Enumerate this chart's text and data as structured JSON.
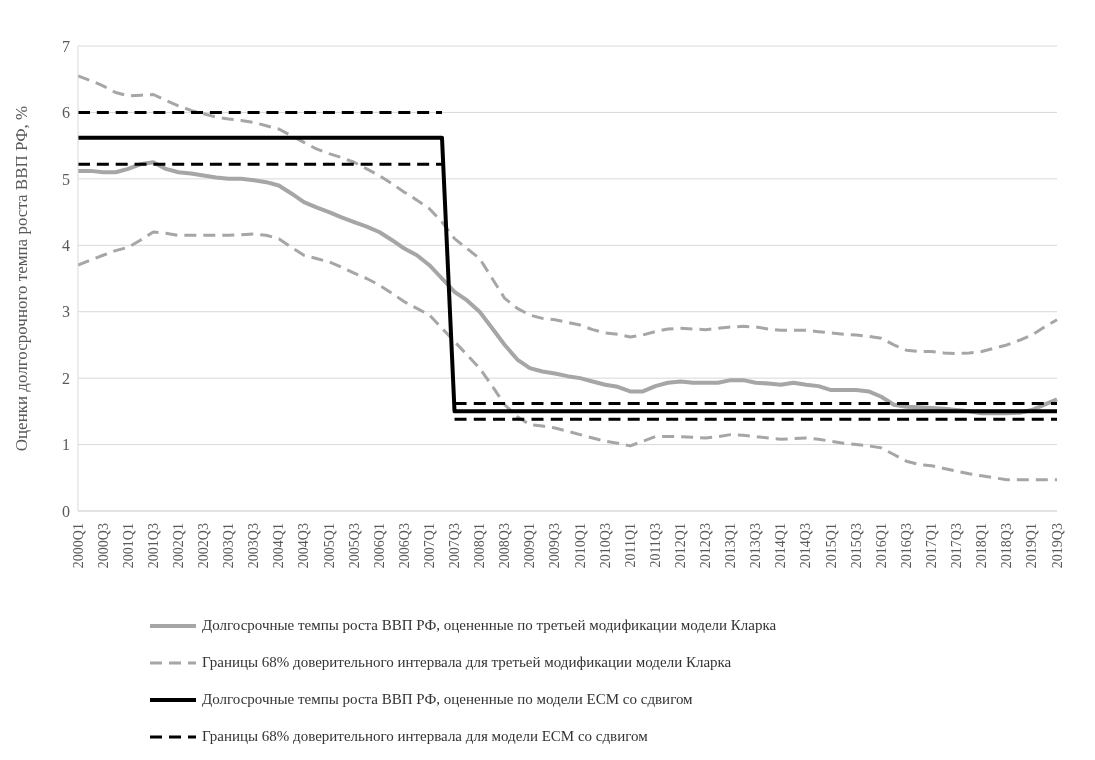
{
  "chart_data": {
    "type": "line",
    "ylabel": "Оценки долгосрочного темпа роста ВВП РФ, %",
    "categories": [
      "2000Q1",
      null,
      "2000Q3",
      null,
      "2001Q1",
      null,
      "2001Q3",
      null,
      "2002Q1",
      null,
      "2002Q3",
      null,
      "2003Q1",
      null,
      "2003Q3",
      null,
      "2004Q1",
      null,
      "2004Q3",
      null,
      "2005Q1",
      null,
      "2005Q3",
      null,
      "2006Q1",
      null,
      "2006Q3",
      null,
      "2007Q1",
      null,
      "2007Q3",
      null,
      "2008Q1",
      null,
      "2008Q3",
      null,
      "2009Q1",
      null,
      "2009Q3",
      null,
      "2010Q1",
      null,
      "2010Q3",
      null,
      "2011Q1",
      null,
      "2011Q3",
      null,
      "2012Q1",
      null,
      "2012Q3",
      null,
      "2013Q1",
      null,
      "2013Q3",
      null,
      "2014Q1",
      null,
      "2014Q3",
      null,
      "2015Q1",
      null,
      "2015Q3",
      null,
      "2016Q1",
      null,
      "2016Q3",
      null,
      "2017Q1",
      null,
      "2017Q3",
      null,
      "2018Q1",
      null,
      "2018Q3",
      null,
      "2019Q1",
      null,
      "2019Q3"
    ],
    "ylim": [
      0,
      7
    ],
    "yticks": [
      0,
      1,
      2,
      3,
      4,
      5,
      6,
      7
    ],
    "grid": "y",
    "legend": "bottom",
    "series": [
      {
        "name": "Долгосрочные темпы роста ВВП РФ, оцененные по третьей модификации модели Кларка",
        "color": "#a6a6a6",
        "line_style": "solid",
        "values": [
          5.12,
          5.12,
          5.1,
          5.1,
          5.15,
          5.22,
          5.25,
          5.15,
          5.1,
          5.08,
          5.05,
          5.02,
          5.0,
          5.0,
          4.98,
          4.95,
          4.9,
          4.78,
          4.65,
          4.57,
          4.5,
          4.42,
          4.35,
          4.28,
          4.2,
          4.08,
          3.95,
          3.85,
          3.7,
          3.5,
          3.3,
          3.17,
          3.0,
          2.75,
          2.5,
          2.28,
          2.15,
          2.1,
          2.07,
          2.03,
          2.0,
          1.95,
          1.9,
          1.87,
          1.8,
          1.8,
          1.88,
          1.93,
          1.95,
          1.93,
          1.93,
          1.93,
          1.97,
          1.97,
          1.93,
          1.92,
          1.9,
          1.93,
          1.9,
          1.88,
          1.82,
          1.82,
          1.82,
          1.8,
          1.72,
          1.6,
          1.57,
          1.56,
          1.55,
          1.54,
          1.52,
          1.5,
          1.47,
          1.47,
          1.47,
          1.48,
          1.52,
          1.6,
          1.68
        ]
      },
      {
        "name": "Границы 68% доверительного интервала для третьей модификации модели Кларка",
        "color": "#a6a6a6",
        "line_style": "dashed",
        "values": [
          6.55,
          6.48,
          6.4,
          6.3,
          6.25,
          6.26,
          6.27,
          6.18,
          6.1,
          6.03,
          5.98,
          5.93,
          5.9,
          5.88,
          5.85,
          5.8,
          5.75,
          5.65,
          5.55,
          5.45,
          5.38,
          5.32,
          5.25,
          5.15,
          5.05,
          4.93,
          4.8,
          4.68,
          4.55,
          4.35,
          4.1,
          3.95,
          3.8,
          3.5,
          3.2,
          3.05,
          2.95,
          2.9,
          2.88,
          2.84,
          2.8,
          2.73,
          2.68,
          2.66,
          2.62,
          2.65,
          2.7,
          2.74,
          2.75,
          2.74,
          2.73,
          2.75,
          2.77,
          2.78,
          2.77,
          2.74,
          2.72,
          2.72,
          2.72,
          2.7,
          2.68,
          2.66,
          2.65,
          2.63,
          2.6,
          2.5,
          2.42,
          2.4,
          2.4,
          2.38,
          2.37,
          2.38,
          2.4,
          2.45,
          2.5,
          2.57,
          2.65,
          2.77,
          2.88
        ]
      },
      {
        "color": "#a6a6a6",
        "line_style": "dashed",
        "values": [
          3.7,
          3.78,
          3.85,
          3.92,
          3.97,
          4.08,
          4.2,
          4.18,
          4.15,
          4.15,
          4.15,
          4.15,
          4.15,
          4.16,
          4.17,
          4.15,
          4.1,
          3.97,
          3.85,
          3.8,
          3.75,
          3.67,
          3.58,
          3.5,
          3.4,
          3.28,
          3.15,
          3.05,
          2.95,
          2.75,
          2.55,
          2.35,
          2.15,
          1.88,
          1.6,
          1.42,
          1.3,
          1.28,
          1.25,
          1.2,
          1.15,
          1.1,
          1.05,
          1.02,
          0.98,
          1.05,
          1.12,
          1.12,
          1.12,
          1.11,
          1.1,
          1.12,
          1.15,
          1.14,
          1.12,
          1.1,
          1.08,
          1.09,
          1.1,
          1.08,
          1.05,
          1.02,
          1.0,
          0.98,
          0.95,
          0.85,
          0.75,
          0.7,
          0.68,
          0.64,
          0.6,
          0.56,
          0.53,
          0.5,
          0.47,
          0.47,
          0.47,
          0.47,
          0.47
        ]
      },
      {
        "name": "Долгосрочные темпы роста ВВП РФ, оцененные по модели ECM со сдвигом",
        "color": "#000000",
        "line_style": "solid",
        "values": [
          5.62,
          5.62,
          5.62,
          5.62,
          5.62,
          5.62,
          5.62,
          5.62,
          5.62,
          5.62,
          5.62,
          5.62,
          5.62,
          5.62,
          5.62,
          5.62,
          5.62,
          5.62,
          5.62,
          5.62,
          5.62,
          5.62,
          5.62,
          5.62,
          5.62,
          5.62,
          5.62,
          5.62,
          5.62,
          5.62,
          1.5,
          1.5,
          1.5,
          1.5,
          1.5,
          1.5,
          1.5,
          1.5,
          1.5,
          1.5,
          1.5,
          1.5,
          1.5,
          1.5,
          1.5,
          1.5,
          1.5,
          1.5,
          1.5,
          1.5,
          1.5,
          1.5,
          1.5,
          1.5,
          1.5,
          1.5,
          1.5,
          1.5,
          1.5,
          1.5,
          1.5,
          1.5,
          1.5,
          1.5,
          1.5,
          1.5,
          1.5,
          1.5,
          1.5,
          1.5,
          1.5,
          1.5,
          1.5,
          1.5,
          1.5,
          1.5,
          1.5,
          1.5,
          1.5
        ]
      },
      {
        "name": "Границы 68% доверительного интервала для модели ECM со сдвигом",
        "color": "#000000",
        "line_style": "dashed",
        "values": [
          6.0,
          6.0,
          6.0,
          6.0,
          6.0,
          6.0,
          6.0,
          6.0,
          6.0,
          6.0,
          6.0,
          6.0,
          6.0,
          6.0,
          6.0,
          6.0,
          6.0,
          6.0,
          6.0,
          6.0,
          6.0,
          6.0,
          6.0,
          6.0,
          6.0,
          6.0,
          6.0,
          6.0,
          6.0,
          6.0,
          null,
          null,
          null,
          null,
          null,
          null,
          null,
          null,
          null,
          null,
          null,
          null,
          null,
          null,
          null,
          null,
          null,
          null,
          null,
          null,
          null,
          null,
          null,
          null,
          null,
          null,
          null,
          null,
          null,
          null,
          null,
          null,
          null,
          null,
          null,
          null,
          null,
          null,
          null,
          null,
          null,
          null,
          null,
          null,
          null,
          null,
          null,
          null,
          null
        ]
      },
      {
        "color": "#000000",
        "line_style": "dashed",
        "values": [
          5.22,
          5.22,
          5.22,
          5.22,
          5.22,
          5.22,
          5.22,
          5.22,
          5.22,
          5.22,
          5.22,
          5.22,
          5.22,
          5.22,
          5.22,
          5.22,
          5.22,
          5.22,
          5.22,
          5.22,
          5.22,
          5.22,
          5.22,
          5.22,
          5.22,
          5.22,
          5.22,
          5.22,
          5.22,
          5.22,
          null,
          null,
          null,
          null,
          null,
          null,
          null,
          null,
          null,
          null,
          null,
          null,
          null,
          null,
          null,
          null,
          null,
          null,
          null,
          null,
          null,
          null,
          null,
          null,
          null,
          null,
          null,
          null,
          null,
          null,
          null,
          null,
          null,
          null,
          null,
          null,
          null,
          null,
          null,
          null,
          null,
          null,
          null,
          null,
          null,
          null,
          null,
          null,
          null
        ]
      },
      {
        "color": "#000000",
        "line_style": "dashed",
        "values": [
          null,
          null,
          null,
          null,
          null,
          null,
          null,
          null,
          null,
          null,
          null,
          null,
          null,
          null,
          null,
          null,
          null,
          null,
          null,
          null,
          null,
          null,
          null,
          null,
          null,
          null,
          null,
          null,
          null,
          null,
          1.62,
          1.62,
          1.62,
          1.62,
          1.62,
          1.62,
          1.62,
          1.62,
          1.62,
          1.62,
          1.62,
          1.62,
          1.62,
          1.62,
          1.62,
          1.62,
          1.62,
          1.62,
          1.62,
          1.62,
          1.62,
          1.62,
          1.62,
          1.62,
          1.62,
          1.62,
          1.62,
          1.62,
          1.62,
          1.62,
          1.62,
          1.62,
          1.62,
          1.62,
          1.62,
          1.62,
          1.62,
          1.62,
          1.62,
          1.62,
          1.62,
          1.62,
          1.62,
          1.62,
          1.62,
          1.62,
          1.62,
          1.62,
          1.62
        ]
      },
      {
        "color": "#000000",
        "line_style": "dashed",
        "values": [
          null,
          null,
          null,
          null,
          null,
          null,
          null,
          null,
          null,
          null,
          null,
          null,
          null,
          null,
          null,
          null,
          null,
          null,
          null,
          null,
          null,
          null,
          null,
          null,
          null,
          null,
          null,
          null,
          null,
          null,
          1.38,
          1.38,
          1.38,
          1.38,
          1.38,
          1.38,
          1.38,
          1.38,
          1.38,
          1.38,
          1.38,
          1.38,
          1.38,
          1.38,
          1.38,
          1.38,
          1.38,
          1.38,
          1.38,
          1.38,
          1.38,
          1.38,
          1.38,
          1.38,
          1.38,
          1.38,
          1.38,
          1.38,
          1.38,
          1.38,
          1.38,
          1.38,
          1.38,
          1.38,
          1.38,
          1.38,
          1.38,
          1.38,
          1.38,
          1.38,
          1.38,
          1.38,
          1.38,
          1.38,
          1.38,
          1.38,
          1.38,
          1.38,
          1.38
        ]
      }
    ]
  }
}
